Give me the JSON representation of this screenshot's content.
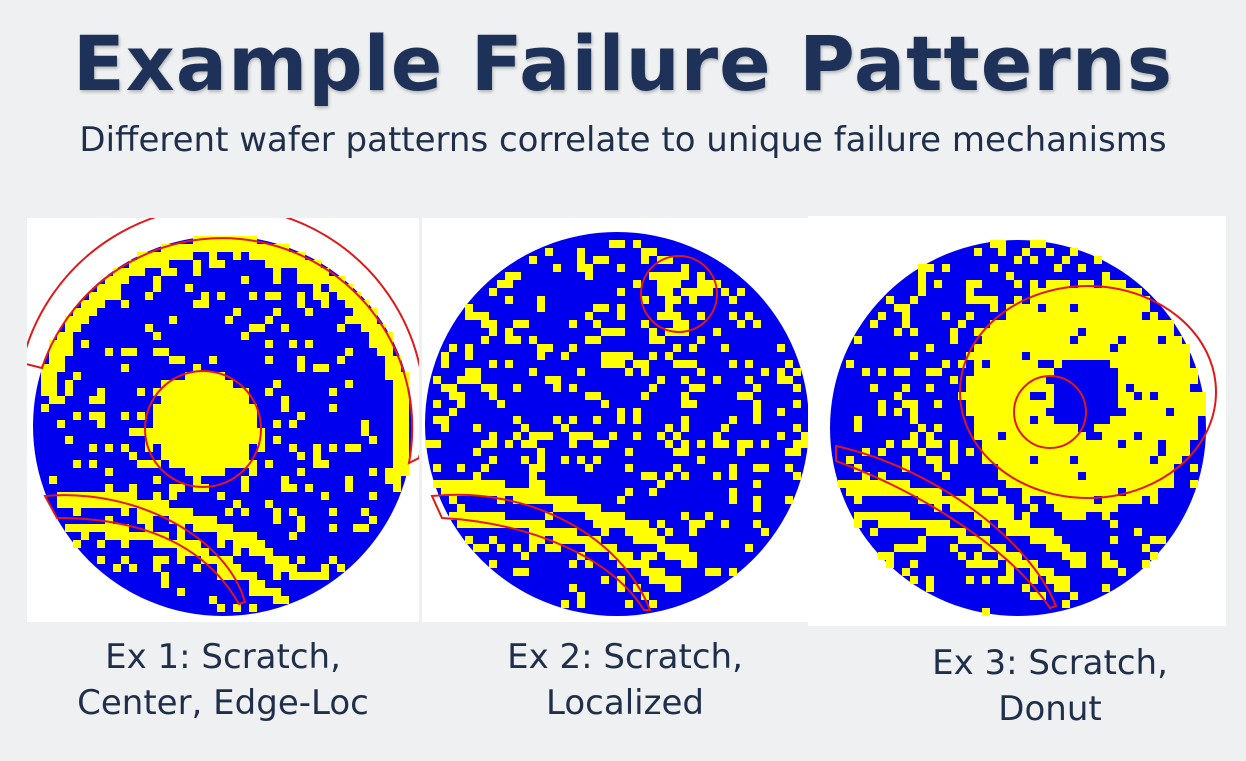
{
  "header": {
    "title": "Example Failure Patterns",
    "subtitle": "Different wafer patterns correlate to unique failure mechanisms"
  },
  "colors": {
    "pass": "#0000ee",
    "fail": "#ffff00",
    "outline": "#e01818",
    "title": "#1e3158",
    "text": "#1f2f4a"
  },
  "examples": [
    {
      "caption_line1": "Ex 1: Scratch,",
      "caption_line2": "Center, Edge-Loc",
      "patterns": [
        "scratch",
        "center",
        "edge-loc"
      ]
    },
    {
      "caption_line1": "Ex 2: Scratch,",
      "caption_line2": "Localized",
      "patterns": [
        "scratch",
        "localized"
      ]
    },
    {
      "caption_line1": "Ex 3: Scratch,",
      "caption_line2": "Donut",
      "patterns": [
        "scratch",
        "donut"
      ]
    }
  ]
}
